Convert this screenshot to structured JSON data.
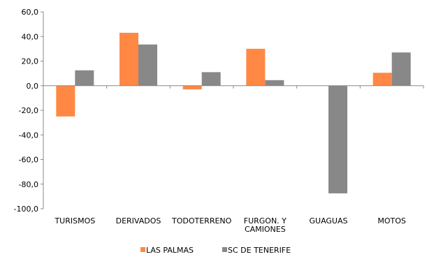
{
  "chart_data": {
    "type": "bar",
    "categories": [
      "TURISMOS",
      "DERIVADOS",
      "TODOTERRENO",
      "FURGON. Y CAMIONES",
      "GUAGUAS",
      "MOTOS"
    ],
    "category_lines": [
      [
        "TURISMOS"
      ],
      [
        "DERIVADOS"
      ],
      [
        "TODOTERRENO"
      ],
      [
        "FURGON. Y",
        "CAMIONES"
      ],
      [
        "GUAGUAS"
      ],
      [
        "MOTOS"
      ]
    ],
    "series": [
      {
        "name": "LAS PALMAS",
        "color": "#ff8844",
        "values": [
          -25.0,
          43.0,
          -3.0,
          30.0,
          0.0,
          10.5
        ]
      },
      {
        "name": "SC DE TENERIFE",
        "color": "#888888",
        "values": [
          12.5,
          33.5,
          11.0,
          4.5,
          -87.5,
          27.0
        ]
      }
    ],
    "ylim": [
      -100,
      60
    ],
    "yticks": [
      "60,0",
      "40,0",
      "20,0",
      "0,0",
      "-20,0",
      "-40,0",
      "-60,0",
      "-80,0",
      "-100,0"
    ],
    "grid": false,
    "legend_position": "bottom"
  }
}
